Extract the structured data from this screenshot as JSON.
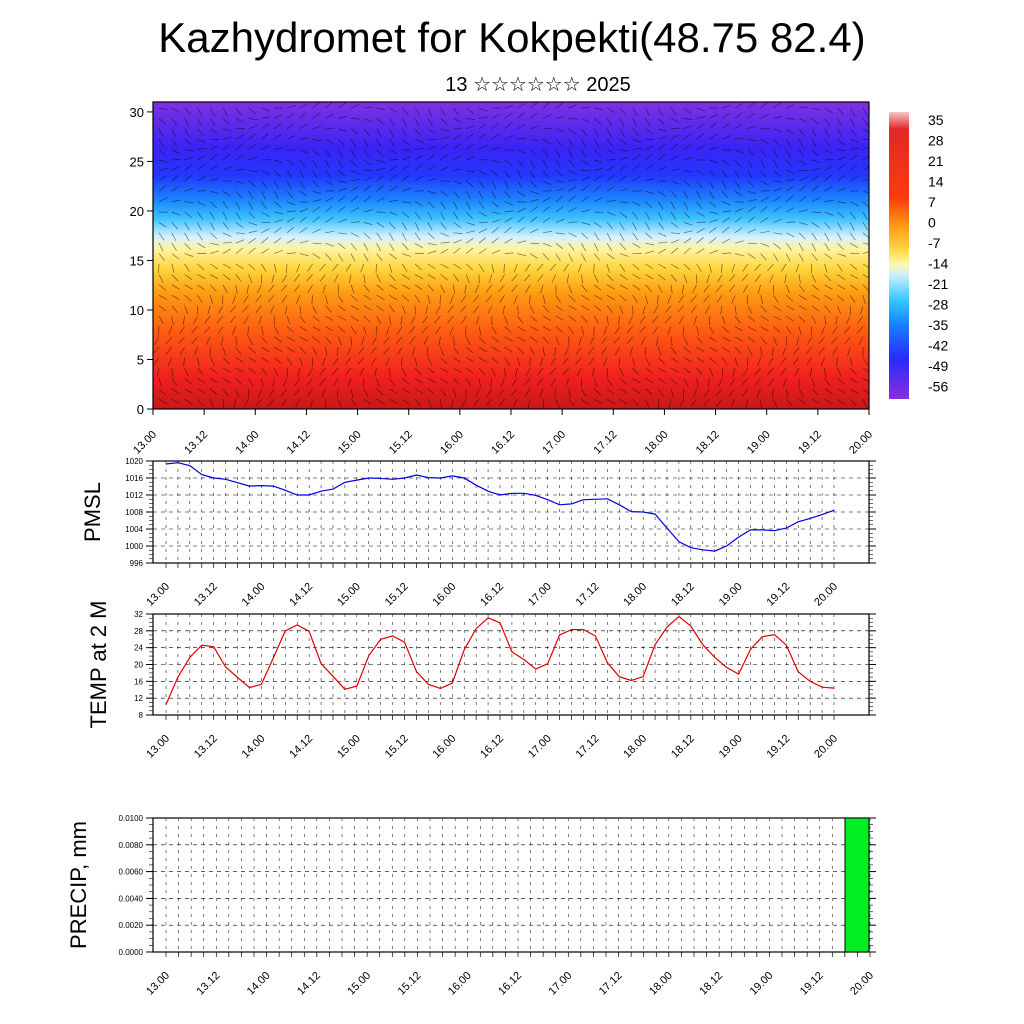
{
  "title": "Kazhydromet for Kokpekti(48.75 82.4)",
  "subtitle": "13 ☆☆☆☆☆☆ 2025",
  "chart_data": [
    {
      "type": "heatmap",
      "name": "cross-section",
      "ylim": [
        0,
        31
      ],
      "y_ticks": [
        "0",
        "5",
        "10",
        "15",
        "20",
        "25",
        "30"
      ],
      "x_tick_labels": [
        "13.00",
        "13.12",
        "14.00",
        "14.12",
        "15.00",
        "15.12",
        "16.00",
        "16.12",
        "17.00",
        "17.12",
        "18.00",
        "18.12",
        "19.00",
        "19.12",
        "20.00"
      ],
      "colorbar_labels": [
        "35",
        "28",
        "21",
        "14",
        "7",
        "0",
        "-7",
        "-14",
        "-21",
        "-28",
        "-35",
        "-42",
        "-49",
        "-56"
      ],
      "colormap": [
        "#f2c0c0",
        "#e8282a",
        "#f24e16",
        "#ff9a10",
        "#ffd23c",
        "#fff06a",
        "#ffffc8",
        "#c4ecff",
        "#2ec8ff",
        "#1a7cff",
        "#2a2aff",
        "#7a2ae8"
      ],
      "ylabel": "",
      "xlabel": ""
    },
    {
      "type": "line",
      "name": "pmsl",
      "ylabel": "PMSL",
      "ylim": [
        996,
        1020
      ],
      "y_ticks": [
        "1020",
        "1016",
        "1012",
        "1008",
        "1004",
        "1000",
        "996"
      ],
      "color": "#0000e0",
      "x_tick_labels": [
        "13.00",
        "13.12",
        "14.00",
        "14.12",
        "15.00",
        "15.12",
        "16.00",
        "16.12",
        "17.00",
        "17.12",
        "18.00",
        "18.12",
        "19.00",
        "19.12",
        "20.00"
      ],
      "values": [
        1019.3,
        1019.6,
        1018.9,
        1016.8,
        1016.0,
        1015.7,
        1014.9,
        1014.1,
        1014.2,
        1014.1,
        1013.1,
        1012.0,
        1012.0,
        1012.9,
        1013.4,
        1015.0,
        1015.5,
        1016.0,
        1015.9,
        1015.7,
        1016.0,
        1016.7,
        1016.1,
        1016.0,
        1016.5,
        1016.0,
        1014.3,
        1012.9,
        1012.0,
        1012.4,
        1012.4,
        1011.9,
        1010.9,
        1009.7,
        1009.9,
        1010.9,
        1011.0,
        1011.1,
        1009.7,
        1008.1,
        1008.0,
        1007.5,
        1004.2,
        1001.0,
        999.6,
        999.1,
        998.8,
        1000.0,
        1002.1,
        1003.8,
        1003.8,
        1003.6,
        1004.2,
        1005.7,
        1006.5,
        1007.4,
        1008.4
      ]
    },
    {
      "type": "line",
      "name": "temp2m",
      "ylabel": "TEMP at 2 M",
      "ylim": [
        8,
        32
      ],
      "y_ticks": [
        "32",
        "28",
        "24",
        "20",
        "16",
        "12",
        "8"
      ],
      "color": "#e00000",
      "x_tick_labels": [
        "13.00",
        "13.12",
        "14.00",
        "14.12",
        "15.00",
        "15.12",
        "16.00",
        "16.12",
        "17.00",
        "17.12",
        "18.00",
        "18.12",
        "19.00",
        "19.12",
        "20.00"
      ],
      "values": [
        10.5,
        17.0,
        21.7,
        24.6,
        24.2,
        19.4,
        16.9,
        14.5,
        15.3,
        21.6,
        28.0,
        29.4,
        27.9,
        20.2,
        17.2,
        14.1,
        14.9,
        22.1,
        26.0,
        26.8,
        25.3,
        18.3,
        15.3,
        14.3,
        15.6,
        23.5,
        28.5,
        31.1,
        29.9,
        23.0,
        21.2,
        18.9,
        20.2,
        27.0,
        28.3,
        28.3,
        26.8,
        20.4,
        17.1,
        16.2,
        17.1,
        24.7,
        28.9,
        31.4,
        29.1,
        24.7,
        21.7,
        19.3,
        17.7,
        23.6,
        26.6,
        27.1,
        24.6,
        18.3,
        16.0,
        14.6,
        14.4
      ]
    },
    {
      "type": "bar",
      "name": "precip",
      "ylabel": "PRECIP, mm",
      "ylim": [
        0,
        0.01
      ],
      "y_ticks": [
        "0.0100",
        "0.0080",
        "0.0060",
        "0.0040",
        "0.0020",
        "0.0000"
      ],
      "color": "#00ee22",
      "x_tick_labels": [
        "13.00",
        "13.12",
        "14.00",
        "14.12",
        "15.00",
        "15.12",
        "16.00",
        "16.12",
        "17.00",
        "17.12",
        "18.00",
        "18.12",
        "19.00",
        "19.12",
        "20.00"
      ],
      "bars": [
        {
          "x_index": 56,
          "value": 0.01
        }
      ]
    }
  ]
}
